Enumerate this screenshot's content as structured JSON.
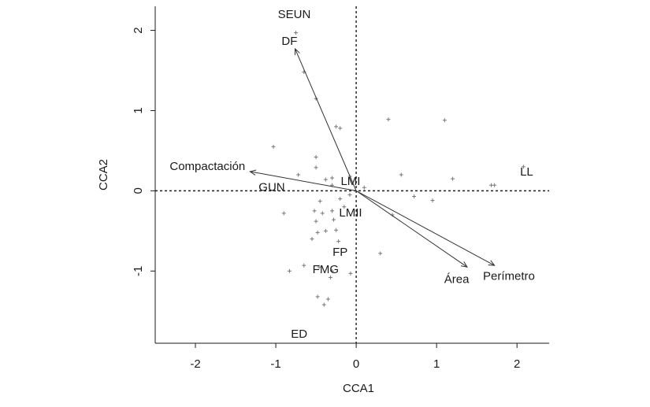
{
  "chart_data": {
    "type": "scatter",
    "title": "",
    "xlabel": "CCA1",
    "ylabel": "CCA2",
    "xlim": [
      -2.5,
      2.4
    ],
    "ylim": [
      -1.9,
      2.3
    ],
    "x_ticks": [
      -2,
      -1,
      0,
      1,
      2
    ],
    "y_ticks": [
      -1,
      0,
      1,
      2
    ],
    "x_tick_labels": [
      "-2",
      "-1",
      "0",
      "1",
      "2"
    ],
    "y_tick_labels": [
      "-1",
      "0",
      "1",
      "2"
    ],
    "grid": false,
    "reference_lines": {
      "x": 0,
      "y": 0,
      "style": "dotted"
    },
    "site_labels": [
      {
        "label": "SEUN",
        "x": -0.77,
        "y": 2.2
      },
      {
        "label": "DF",
        "x": -0.83,
        "y": 1.87
      },
      {
        "label": "LL",
        "x": 2.12,
        "y": 0.24
      },
      {
        "label": "LMI",
        "x": -0.07,
        "y": 0.12
      },
      {
        "label": "GUN",
        "x": -1.05,
        "y": 0.05
      },
      {
        "label": "LMII",
        "x": -0.07,
        "y": -0.27
      },
      {
        "label": "FP",
        "x": -0.2,
        "y": -0.76
      },
      {
        "label": "FMG",
        "x": -0.38,
        "y": -0.98
      },
      {
        "label": "ED",
        "x": -0.71,
        "y": -1.78
      }
    ],
    "species_points": [
      {
        "x": -0.75,
        "y": 1.97
      },
      {
        "x": -0.65,
        "y": 1.48
      },
      {
        "x": -0.5,
        "y": 1.15
      },
      {
        "x": -0.25,
        "y": 0.8
      },
      {
        "x": -0.2,
        "y": 0.78
      },
      {
        "x": 0.4,
        "y": 0.89
      },
      {
        "x": 1.1,
        "y": 0.88
      },
      {
        "x": -1.03,
        "y": 0.55
      },
      {
        "x": -0.5,
        "y": 0.42
      },
      {
        "x": -0.5,
        "y": 0.29
      },
      {
        "x": -0.72,
        "y": 0.2
      },
      {
        "x": -0.3,
        "y": 0.16
      },
      {
        "x": -0.38,
        "y": 0.14
      },
      {
        "x": -0.08,
        "y": 0.18
      },
      {
        "x": 0.56,
        "y": 0.2
      },
      {
        "x": 1.2,
        "y": 0.15
      },
      {
        "x": 1.68,
        "y": 0.07
      },
      {
        "x": 1.72,
        "y": 0.07
      },
      {
        "x": 2.08,
        "y": 0.3
      },
      {
        "x": 0.1,
        "y": 0.04
      },
      {
        "x": -0.3,
        "y": 0.07
      },
      {
        "x": 0.72,
        "y": -0.07
      },
      {
        "x": 0.95,
        "y": -0.12
      },
      {
        "x": -0.45,
        "y": -0.13
      },
      {
        "x": -0.2,
        "y": -0.1
      },
      {
        "x": -0.08,
        "y": -0.05
      },
      {
        "x": 0.45,
        "y": -0.3
      },
      {
        "x": -0.9,
        "y": -0.28
      },
      {
        "x": -0.52,
        "y": -0.25
      },
      {
        "x": -0.42,
        "y": -0.28
      },
      {
        "x": -0.3,
        "y": -0.25
      },
      {
        "x": -0.15,
        "y": -0.2
      },
      {
        "x": -0.5,
        "y": -0.38
      },
      {
        "x": -0.28,
        "y": -0.36
      },
      {
        "x": -0.48,
        "y": -0.52
      },
      {
        "x": -0.38,
        "y": -0.5
      },
      {
        "x": -0.25,
        "y": -0.49
      },
      {
        "x": -0.55,
        "y": -0.6
      },
      {
        "x": -0.22,
        "y": -0.63
      },
      {
        "x": 0.3,
        "y": -0.78
      },
      {
        "x": -0.65,
        "y": -0.93
      },
      {
        "x": -0.46,
        "y": -0.95
      },
      {
        "x": -0.83,
        "y": -1.0
      },
      {
        "x": -0.3,
        "y": -1.0
      },
      {
        "x": -0.07,
        "y": -1.03
      },
      {
        "x": -0.32,
        "y": -1.08
      },
      {
        "x": -0.48,
        "y": -1.32
      },
      {
        "x": -0.35,
        "y": -1.35
      },
      {
        "x": -0.4,
        "y": -1.42
      }
    ],
    "biplot_arrows": [
      {
        "label": "DF",
        "x": -0.76,
        "y": 1.77,
        "show_label": false
      },
      {
        "label": "Compactación",
        "x": -1.32,
        "y": 0.24,
        "show_label": true,
        "label_x": -1.85,
        "label_y": 0.31
      },
      {
        "label": "Área",
        "x": 1.38,
        "y": -0.95,
        "show_label": true,
        "label_x": 1.25,
        "label_y": -1.1
      },
      {
        "label": "Perímetro",
        "x": 1.72,
        "y": -0.93,
        "show_label": true,
        "label_x": 1.9,
        "label_y": -1.06
      }
    ]
  }
}
